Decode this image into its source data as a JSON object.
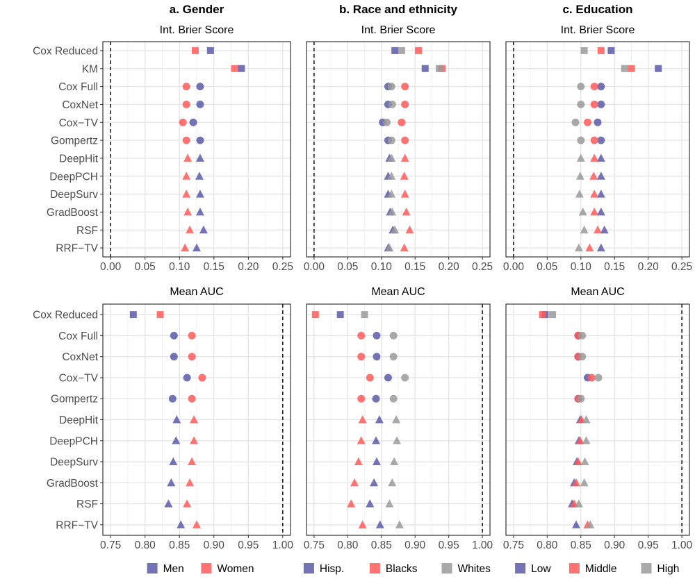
{
  "columns": [
    {
      "title": "a. Gender",
      "legend": [
        "Men",
        "Women"
      ]
    },
    {
      "title": "b. Race and ethnicity",
      "legend": [
        "Hisp.",
        "Blacks",
        "Whites"
      ]
    },
    {
      "title": "c. Education",
      "legend": [
        "Low",
        "Middle",
        "High"
      ]
    }
  ],
  "colors": {
    "group1": "#5b5ba8",
    "group2": "#ff5a5a",
    "group3": "#9a9a9a",
    "dashed_line": "#000000"
  },
  "chart_data": [
    {
      "type": "scatter",
      "panel": "a-brier",
      "title": "Int. Brier Score",
      "reference_line": 0,
      "xlim": [
        0,
        0.25
      ],
      "xticks": [
        "0.00",
        "0.05",
        "0.10",
        "0.15",
        "0.20",
        "0.25"
      ],
      "models": [
        "Cox Reduced",
        "KM",
        "Cox Full",
        "CoxNet",
        "Cox−TV",
        "Gompertz",
        "DeepHit",
        "DeepPCH",
        "DeepSurv",
        "GradBoost",
        "RSF",
        "RRF−TV"
      ],
      "marker_types": [
        "square",
        "square",
        "circle",
        "circle",
        "circle",
        "circle",
        "triangle",
        "triangle",
        "triangle",
        "triangle",
        "triangle",
        "triangle"
      ],
      "series": [
        {
          "name": "Men",
          "values": [
            0.145,
            0.19,
            0.13,
            0.13,
            0.12,
            0.13,
            0.13,
            0.129,
            0.13,
            0.13,
            0.135,
            0.125
          ]
        },
        {
          "name": "Women",
          "values": [
            0.123,
            0.18,
            0.11,
            0.11,
            0.105,
            0.11,
            0.112,
            0.11,
            0.11,
            0.112,
            0.115,
            0.108
          ]
        }
      ]
    },
    {
      "type": "scatter",
      "panel": "b-brier",
      "title": "Int. Brier Score",
      "reference_line": 0,
      "xlim": [
        0,
        0.25
      ],
      "xticks": [
        "0.00",
        "0.05",
        "0.10",
        "0.15",
        "0.20",
        "0.25"
      ],
      "models": [
        "Cox Reduced",
        "KM",
        "Cox Full",
        "CoxNet",
        "Cox−TV",
        "Gompertz",
        "DeepHit",
        "DeepPCH",
        "DeepSurv",
        "GradBoost",
        "RSF",
        "RRF−TV"
      ],
      "marker_types": [
        "square",
        "square",
        "circle",
        "circle",
        "circle",
        "circle",
        "triangle",
        "triangle",
        "triangle",
        "triangle",
        "triangle",
        "triangle"
      ],
      "series": [
        {
          "name": "Hisp.",
          "values": [
            0.12,
            0.165,
            0.11,
            0.11,
            0.102,
            0.11,
            0.112,
            0.11,
            0.11,
            0.113,
            0.117,
            0.11
          ]
        },
        {
          "name": "Blacks",
          "values": [
            0.155,
            0.19,
            0.135,
            0.135,
            0.13,
            0.135,
            0.135,
            0.134,
            0.135,
            0.137,
            0.142,
            0.134
          ]
        },
        {
          "name": "Whites",
          "values": [
            0.13,
            0.186,
            0.115,
            0.116,
            0.108,
            0.115,
            0.115,
            0.115,
            0.115,
            0.116,
            0.12,
            0.112
          ]
        }
      ]
    },
    {
      "type": "scatter",
      "panel": "c-brier",
      "title": "Int. Brier Score",
      "reference_line": 0,
      "xlim": [
        0,
        0.25
      ],
      "xticks": [
        "0.00",
        "0.05",
        "0.10",
        "0.15",
        "0.20",
        "0.25"
      ],
      "models": [
        "Cox Reduced",
        "KM",
        "Cox Full",
        "CoxNet",
        "Cox−TV",
        "Gompertz",
        "DeepHit",
        "DeepPCH",
        "DeepSurv",
        "GradBoost",
        "RSF",
        "RRF−TV"
      ],
      "marker_types": [
        "square",
        "square",
        "circle",
        "circle",
        "circle",
        "circle",
        "triangle",
        "triangle",
        "triangle",
        "triangle",
        "triangle",
        "triangle"
      ],
      "series": [
        {
          "name": "Low",
          "values": [
            0.145,
            0.215,
            0.13,
            0.13,
            0.125,
            0.13,
            0.13,
            0.13,
            0.13,
            0.13,
            0.135,
            0.13
          ]
        },
        {
          "name": "Middle",
          "values": [
            0.13,
            0.175,
            0.12,
            0.12,
            0.11,
            0.12,
            0.12,
            0.119,
            0.12,
            0.12,
            0.125,
            0.113
          ]
        },
        {
          "name": "High",
          "values": [
            0.105,
            0.165,
            0.1,
            0.1,
            0.092,
            0.1,
            0.1,
            0.099,
            0.098,
            0.103,
            0.105,
            0.097
          ]
        }
      ]
    },
    {
      "type": "scatter",
      "panel": "a-auc",
      "title": "Mean AUC",
      "reference_line": 1.0,
      "xlim": [
        0.75,
        1.0
      ],
      "xticks": [
        "0.75",
        "0.80",
        "0.85",
        "0.90",
        "0.95",
        "1.00"
      ],
      "models": [
        "Cox Reduced",
        "Cox Full",
        "CoxNet",
        "Cox−TV",
        "Gompertz",
        "DeepHit",
        "DeepPCH",
        "DeepSurv",
        "GradBoost",
        "RSF",
        "RRF−TV"
      ],
      "marker_types": [
        "square",
        "circle",
        "circle",
        "circle",
        "circle",
        "triangle",
        "triangle",
        "triangle",
        "triangle",
        "triangle",
        "triangle"
      ],
      "series": [
        {
          "name": "Men",
          "values": [
            0.783,
            0.842,
            0.842,
            0.861,
            0.84,
            0.846,
            0.845,
            0.841,
            0.838,
            0.834,
            0.852
          ]
        },
        {
          "name": "Women",
          "values": [
            0.822,
            0.868,
            0.868,
            0.883,
            0.868,
            0.871,
            0.871,
            0.868,
            0.865,
            0.861,
            0.875
          ]
        }
      ]
    },
    {
      "type": "scatter",
      "panel": "b-auc",
      "title": "Mean AUC",
      "reference_line": 1.0,
      "xlim": [
        0.75,
        1.0
      ],
      "xticks": [
        "0.75",
        "0.80",
        "0.85",
        "0.90",
        "0.95",
        "1.00"
      ],
      "models": [
        "Cox Reduced",
        "Cox Full",
        "CoxNet",
        "Cox−TV",
        "Gompertz",
        "DeepHit",
        "DeepPCH",
        "DeepSurv",
        "GradBoost",
        "RSF",
        "RRF−TV"
      ],
      "marker_types": [
        "square",
        "circle",
        "circle",
        "circle",
        "circle",
        "triangle",
        "triangle",
        "triangle",
        "triangle",
        "triangle",
        "triangle"
      ],
      "series": [
        {
          "name": "Hisp.",
          "values": [
            0.789,
            0.843,
            0.843,
            0.86,
            0.842,
            0.847,
            0.842,
            0.843,
            0.839,
            0.833,
            0.848
          ]
        },
        {
          "name": "Blacks",
          "values": [
            0.752,
            0.82,
            0.82,
            0.833,
            0.82,
            0.822,
            0.82,
            0.816,
            0.81,
            0.805,
            0.822
          ]
        },
        {
          "name": "Whites",
          "values": [
            0.825,
            0.868,
            0.868,
            0.885,
            0.868,
            0.872,
            0.873,
            0.869,
            0.866,
            0.862,
            0.877
          ]
        }
      ]
    },
    {
      "type": "scatter",
      "panel": "c-auc",
      "title": "Mean AUC",
      "reference_line": 1.0,
      "xlim": [
        0.75,
        1.0
      ],
      "xticks": [
        "0.75",
        "0.80",
        "0.85",
        "0.90",
        "0.95",
        "1.00"
      ],
      "models": [
        "Cox Reduced",
        "Cox Full",
        "CoxNet",
        "Cox−TV",
        "Gompertz",
        "DeepHit",
        "DeepPCH",
        "DeepSurv",
        "GradBoost",
        "RSF",
        "RRF−TV"
      ],
      "marker_types": [
        "square",
        "circle",
        "circle",
        "circle",
        "circle",
        "triangle",
        "triangle",
        "triangle",
        "triangle",
        "triangle",
        "triangle"
      ],
      "series": [
        {
          "name": "Low",
          "values": [
            0.797,
            0.846,
            0.846,
            0.86,
            0.846,
            0.849,
            0.847,
            0.844,
            0.84,
            0.837,
            0.843
          ]
        },
        {
          "name": "Middle",
          "values": [
            0.793,
            0.846,
            0.846,
            0.866,
            0.846,
            0.851,
            0.849,
            0.846,
            0.843,
            0.84,
            0.86
          ]
        },
        {
          "name": "High",
          "values": [
            0.808,
            0.852,
            0.852,
            0.876,
            0.85,
            0.858,
            0.858,
            0.856,
            0.855,
            0.847,
            0.864
          ]
        }
      ]
    }
  ]
}
